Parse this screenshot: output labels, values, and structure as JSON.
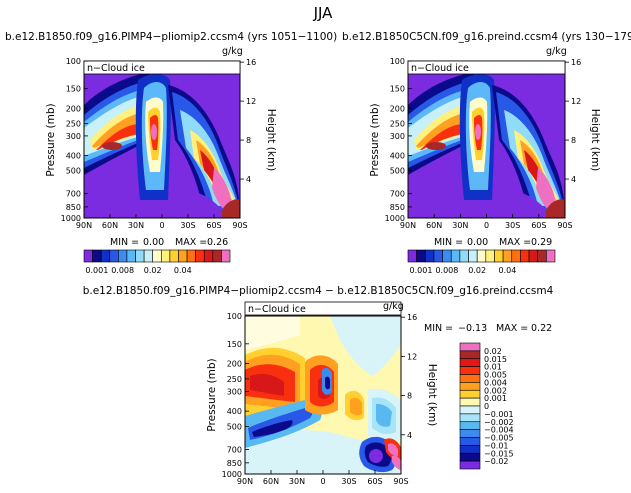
{
  "page": {
    "title": "JJA",
    "panel_top_left_title": "b.e12.B1850.f09_g16.PIMP4−pliomip2.ccsm4 (yrs 1051−1100)",
    "panel_top_right_title": "b.e12.B1850C5CN.f09_g16.preind.ccsm4 (yrs 130−179)",
    "panel_bottom_title": "b.e12.B1850.f09_g16.PIMP4−pliomip2.ccsm4 − b.e12.B1850C5CN.f09_g16.preind.ccsm4"
  },
  "chart_data": [
    {
      "type": "heatmap",
      "name": "top-left",
      "variable_label": "n−Cloud ice",
      "units": "g/kg",
      "ylabel": "Pressure (mb)",
      "ylabel_right": "Height (km)",
      "x_ticks": [
        "90N",
        "60N",
        "30N",
        "0",
        "30S",
        "60S",
        "90S"
      ],
      "y_ticks": [
        "100",
        "150",
        "200",
        "250",
        "300",
        "400",
        "500",
        "700",
        "850",
        "1000"
      ],
      "y_right_ticks": [
        "16",
        "12",
        "8",
        "4"
      ],
      "min_label": "MIN =",
      "min_value": "0.00",
      "max_label": "MAX =",
      "max_value": "0.26",
      "colorbar_labels": [
        "0.001",
        "0.008",
        "0.02",
        "0.04"
      ]
    },
    {
      "type": "heatmap",
      "name": "top-right",
      "variable_label": "n−Cloud ice",
      "units": "g/kg",
      "ylabel": "Pressure (mb)",
      "ylabel_right": "Height (km)",
      "x_ticks": [
        "90N",
        "60N",
        "30N",
        "0",
        "30S",
        "60S",
        "90S"
      ],
      "y_ticks": [
        "100",
        "150",
        "200",
        "250",
        "300",
        "400",
        "500",
        "700",
        "850",
        "1000"
      ],
      "y_right_ticks": [
        "16",
        "12",
        "8",
        "4"
      ],
      "min_label": "MIN =",
      "min_value": "0.00",
      "max_label": "MAX =",
      "max_value": "0.29",
      "colorbar_labels": [
        "0.001",
        "0.008",
        "0.02",
        "0.04"
      ]
    },
    {
      "type": "heatmap",
      "name": "bottom-difference",
      "variable_label": "n−Cloud ice",
      "units": "g/kg",
      "ylabel": "Pressure (mb)",
      "ylabel_right": "Height (km)",
      "x_ticks": [
        "90N",
        "60N",
        "30N",
        "0",
        "30S",
        "60S",
        "90S"
      ],
      "y_ticks": [
        "100",
        "150",
        "200",
        "250",
        "300",
        "400",
        "500",
        "700",
        "850",
        "1000"
      ],
      "y_right_ticks": [
        "16",
        "12",
        "8",
        "4"
      ],
      "min_label": "MIN =",
      "min_value": "−0.13",
      "max_label": "MAX =",
      "max_value": "0.22",
      "colorbar_labels": [
        "0.02",
        "0.015",
        "0.01",
        "0.005",
        "0.004",
        "0.002",
        "0.001",
        "0",
        "−0.001",
        "−0.002",
        "−0.004",
        "−0.005",
        "−0.01",
        "−0.015",
        "−0.02"
      ]
    }
  ],
  "colors": {
    "seq": [
      "#7b2be0",
      "#0a0a8a",
      "#1030c8",
      "#2858e8",
      "#3c8cf0",
      "#5cb8f8",
      "#90dcf8",
      "#c8f0f8",
      "#fffccc",
      "#fff080",
      "#ffd030",
      "#ffa020",
      "#ff7010",
      "#f83010",
      "#d81818",
      "#a82828",
      "#f070c0"
    ],
    "div": [
      "#f070c0",
      "#a82828",
      "#e01818",
      "#f83010",
      "#ff7010",
      "#ffa020",
      "#ffd030",
      "#fff8b0",
      "#d8f4f8",
      "#a8e4f8",
      "#58b8f0",
      "#3c8cf0",
      "#2858e8",
      "#1030c8",
      "#0a0a8a",
      "#7b2be0"
    ]
  }
}
